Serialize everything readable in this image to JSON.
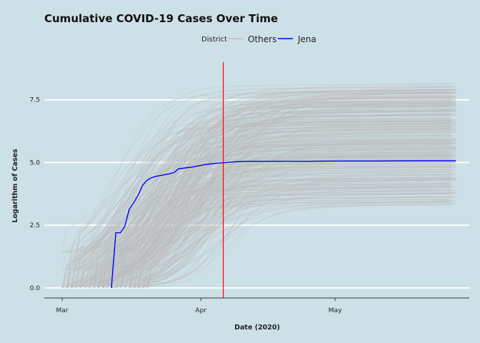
{
  "chart_data": {
    "type": "line",
    "title": "Cumulative COVID-19 Cases Over Time",
    "xlabel": "Date (2020)",
    "ylabel": "Logarithm of Cases",
    "x_ticks": [
      "Mar",
      "Apr",
      "May"
    ],
    "y_ticks": [
      "0.0",
      "2.5",
      "5.0",
      "7.5"
    ],
    "ylim": [
      -0.4,
      9.2
    ],
    "xlim": [
      "2020-02-26",
      "2020-05-31"
    ],
    "grid": "horizontal",
    "legend": {
      "title": "District",
      "placement": "top",
      "entries": [
        {
          "label": "Others",
          "color": "#bdbdbd"
        },
        {
          "label": "Jena",
          "color": "#0000ff"
        }
      ]
    },
    "reference_line": {
      "x": "2020-04-06",
      "color": "#ff0000"
    },
    "series": [
      {
        "name": "Jena",
        "color": "#0000ff",
        "points": [
          [
            "2020-03-12",
            0.0
          ],
          [
            "2020-03-13",
            2.2
          ],
          [
            "2020-03-14",
            2.2
          ],
          [
            "2020-03-15",
            2.45
          ],
          [
            "2020-03-16",
            3.15
          ],
          [
            "2020-03-17",
            3.4
          ],
          [
            "2020-03-18",
            3.7
          ],
          [
            "2020-03-19",
            4.1
          ],
          [
            "2020-03-20",
            4.3
          ],
          [
            "2020-03-21",
            4.4
          ],
          [
            "2020-03-22",
            4.45
          ],
          [
            "2020-03-23",
            4.48
          ],
          [
            "2020-03-24",
            4.52
          ],
          [
            "2020-03-25",
            4.55
          ],
          [
            "2020-03-26",
            4.6
          ],
          [
            "2020-03-27",
            4.75
          ],
          [
            "2020-03-28",
            4.77
          ],
          [
            "2020-03-29",
            4.8
          ],
          [
            "2020-03-30",
            4.82
          ],
          [
            "2020-03-31",
            4.85
          ],
          [
            "2020-04-01",
            4.88
          ],
          [
            "2020-04-02",
            4.92
          ],
          [
            "2020-04-03",
            4.94
          ],
          [
            "2020-04-04",
            4.96
          ],
          [
            "2020-04-05",
            4.98
          ],
          [
            "2020-04-06",
            4.99
          ],
          [
            "2020-04-08",
            5.02
          ],
          [
            "2020-04-10",
            5.04
          ],
          [
            "2020-04-15",
            5.05
          ],
          [
            "2020-04-20",
            5.05
          ],
          [
            "2020-04-25",
            5.05
          ],
          [
            "2020-05-01",
            5.06
          ],
          [
            "2020-05-10",
            5.06
          ],
          [
            "2020-05-20",
            5.07
          ],
          [
            "2020-05-28",
            5.07
          ]
        ]
      }
    ],
    "others_count": 400,
    "others_color": "#bdbdbd"
  },
  "colors": {
    "background": "#cde0e7",
    "grid": "#ffffff",
    "axis": "#333333"
  }
}
